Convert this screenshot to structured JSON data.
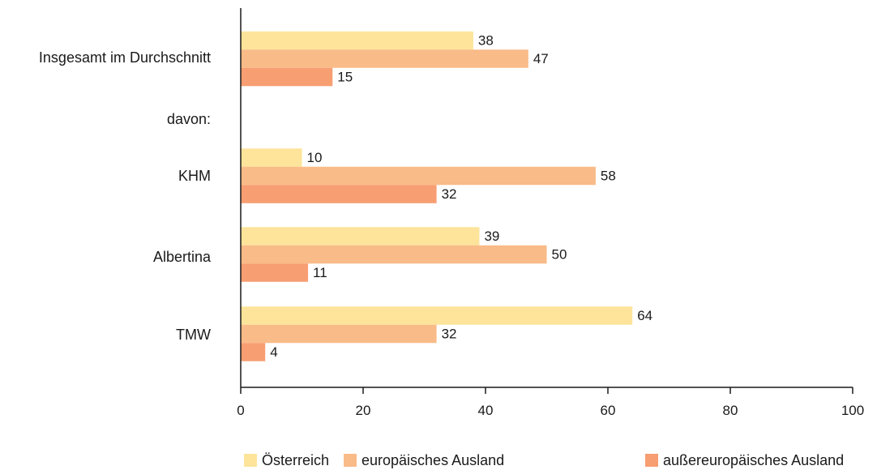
{
  "chart_data": {
    "type": "bar",
    "orientation": "horizontal",
    "categories": [
      "Insgesamt im Durchschnitt",
      "davon:",
      "KHM",
      "Albertina",
      "TMW"
    ],
    "series": [
      {
        "name": "Österreich",
        "color": "#fde49a",
        "values": [
          38,
          null,
          10,
          39,
          64
        ]
      },
      {
        "name": "europäisches Ausland",
        "color": "#f9bb88",
        "values": [
          47,
          null,
          58,
          50,
          32
        ]
      },
      {
        "name": "außereuropäisches Ausland",
        "color": "#f79e72",
        "values": [
          15,
          null,
          32,
          11,
          4
        ]
      }
    ],
    "xlim": [
      0,
      100
    ],
    "xticks": [
      0,
      20,
      40,
      60,
      80,
      100
    ],
    "xtick_labels": [
      "0",
      "20",
      "40",
      "60",
      "80",
      "100"
    ],
    "grid": false,
    "legend_position": "bottom",
    "title": "",
    "xlabel": "",
    "ylabel": ""
  }
}
